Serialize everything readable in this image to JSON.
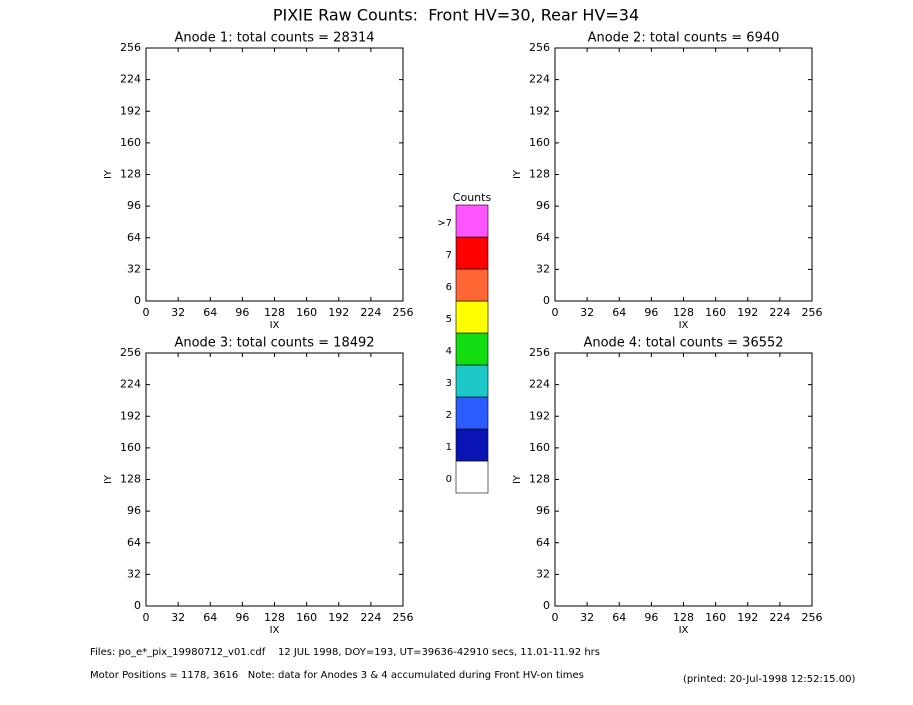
{
  "title": "PIXIE Raw Counts:  Front HV=30, Rear HV=34",
  "chart_data": [
    {
      "type": "heatmap",
      "title": "Anode 1: total counts = 28314",
      "x_label": "IX",
      "y_label": "IY",
      "xlim": [
        0,
        256
      ],
      "ylim": [
        0,
        256
      ],
      "xticks": [
        0,
        32,
        64,
        96,
        128,
        160,
        192,
        224,
        256
      ],
      "yticks": [
        0,
        32,
        64,
        96,
        128,
        160,
        192,
        224,
        256
      ]
    },
    {
      "type": "heatmap",
      "title": "Anode 2: total counts = 6940",
      "x_label": "IX",
      "y_label": "IY",
      "xlim": [
        0,
        256
      ],
      "ylim": [
        0,
        256
      ],
      "xticks": [
        0,
        32,
        64,
        96,
        128,
        160,
        192,
        224,
        256
      ],
      "yticks": [
        0,
        32,
        64,
        96,
        128,
        160,
        192,
        224,
        256
      ]
    },
    {
      "type": "heatmap",
      "title": "Anode 3: total counts = 18492",
      "x_label": "IX",
      "y_label": "IY",
      "xlim": [
        0,
        256
      ],
      "ylim": [
        0,
        256
      ],
      "xticks": [
        0,
        32,
        64,
        96,
        128,
        160,
        192,
        224,
        256
      ],
      "yticks": [
        0,
        32,
        64,
        96,
        128,
        160,
        192,
        224,
        256
      ]
    },
    {
      "type": "heatmap",
      "title": "Anode 4: total counts = 36552",
      "x_label": "IX",
      "y_label": "IY",
      "xlim": [
        0,
        256
      ],
      "ylim": [
        0,
        256
      ],
      "xticks": [
        0,
        32,
        64,
        96,
        128,
        160,
        192,
        224,
        256
      ],
      "yticks": [
        0,
        32,
        64,
        96,
        128,
        160,
        192,
        224,
        256
      ]
    }
  ],
  "colorbar": {
    "title": "Counts",
    "levels": [
      {
        "label": "0",
        "color": "#ffffff"
      },
      {
        "label": "1",
        "color": "#0a14b4"
      },
      {
        "label": "2",
        "color": "#2a5cff"
      },
      {
        "label": "3",
        "color": "#1cc8c8"
      },
      {
        "label": "4",
        "color": "#11dd11"
      },
      {
        "label": "5",
        "color": "#ffff00"
      },
      {
        "label": "6",
        "color": "#ff6633"
      },
      {
        "label": "7",
        "color": "#ff0000"
      },
      {
        "label": ">7",
        "color": "#ff55ff"
      }
    ]
  },
  "footer": {
    "files": "Files: po_e*_pix_19980712_v01.cdf    12 JUL 1998, DOY=193, UT=39636-42910 secs, 11.01-11.92 hrs",
    "motor": "Motor Positions = 1178, 3616   Note: data for Anodes 3 & 4 accumulated during Front HV-on times",
    "printed": "(printed: 20-Jul-1998 12:52:15.00)"
  }
}
